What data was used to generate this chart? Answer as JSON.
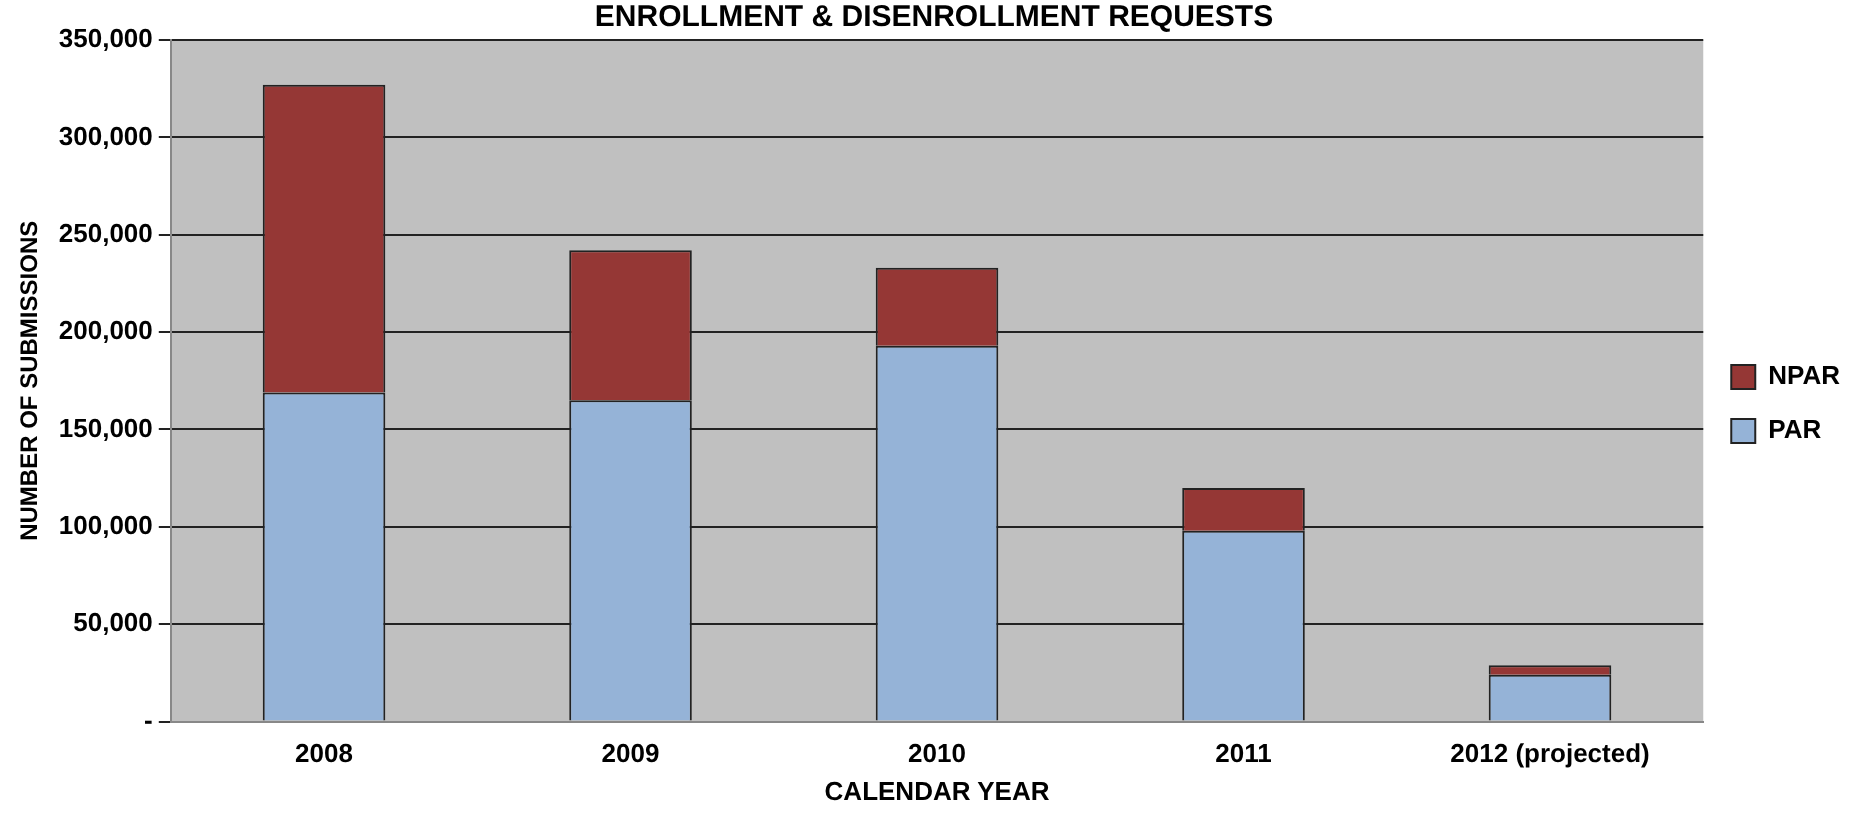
{
  "chart_data": {
    "type": "bar",
    "stacked": true,
    "title": "ENROLLMENT & DISENROLLMENT REQUESTS",
    "xlabel": "CALENDAR YEAR",
    "ylabel": "NUMBER OF SUBMISSIONS",
    "categories": [
      "2008",
      "2009",
      "2010",
      "2011",
      "2012 (projected)"
    ],
    "series": [
      {
        "name": "PAR",
        "color": "#95b3d7",
        "values": [
          169000,
          165000,
          193000,
          98000,
          24000
        ]
      },
      {
        "name": "NPAR",
        "color": "#953735",
        "values": [
          158000,
          77000,
          40000,
          22000,
          5000
        ]
      }
    ],
    "ylim": [
      0,
      350000
    ],
    "yticks": [
      {
        "value": 0,
        "label": "-"
      },
      {
        "value": 50000,
        "label": "50,000"
      },
      {
        "value": 100000,
        "label": "100,000"
      },
      {
        "value": 150000,
        "label": "150,000"
      },
      {
        "value": 200000,
        "label": "200,000"
      },
      {
        "value": 250000,
        "label": "250,000"
      },
      {
        "value": 300000,
        "label": "300,000"
      },
      {
        "value": 350000,
        "label": "350,000"
      }
    ],
    "grid": "y",
    "legend": "right"
  }
}
